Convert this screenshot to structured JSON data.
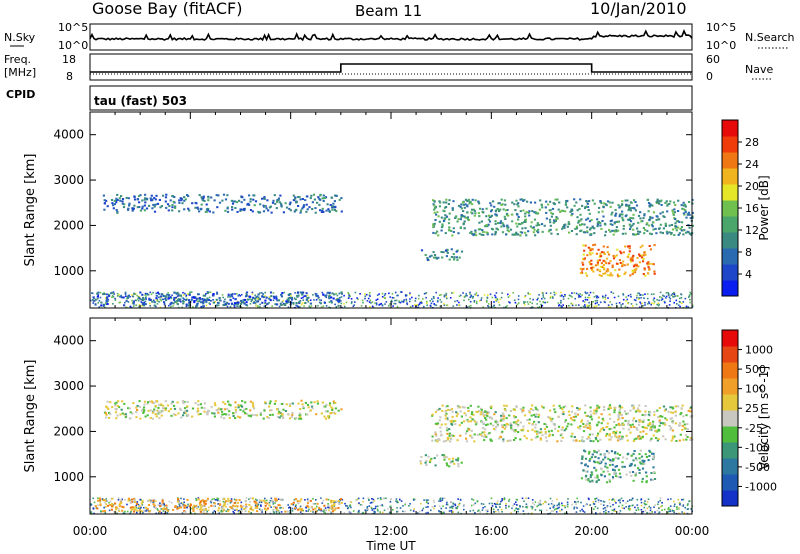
{
  "header": {
    "station": "Goose Bay (fitACF)",
    "beam": "Beam 11",
    "date": "10/Jan/2010"
  },
  "strips": {
    "nsky_label": "N.Sky",
    "nsky_ticks": [
      "10^5",
      "10^0"
    ],
    "nsearch_label": "N.Search",
    "nsearch_ticks": [
      "10^5",
      "10^0"
    ],
    "freq_label": "Freq.",
    "freq_unit": "[MHz]",
    "freq_ticks": [
      "18",
      "8"
    ],
    "nave_label": "Nave",
    "nave_ticks": [
      "60",
      "0"
    ],
    "cpid_label": "CPID",
    "cpid_value": "tau (fast) 503"
  },
  "chart_data": [
    {
      "type": "heatmap",
      "name": "power-panel",
      "ylabel": "Slant Range [km]",
      "xlabel": "Time UT",
      "x_range": [
        "00:00",
        "24:00"
      ],
      "y_range": [
        180,
        4500
      ],
      "y_ticks": [
        1000,
        2000,
        3000,
        4000
      ],
      "colorbar": {
        "label": "Power [dB]",
        "ticks": [
          "4",
          "8",
          "12",
          "16",
          "20",
          "24",
          "28"
        ],
        "colors": [
          "#0a1ef0",
          "#1e46c8",
          "#2a6ab0",
          "#3a8a82",
          "#4aa66a",
          "#70c050",
          "#e6e628",
          "#f0b41e",
          "#f07814",
          "#f03c0a",
          "#e60a0a"
        ]
      },
      "regions": [
        {
          "t0": 0.5,
          "t1": 10.0,
          "r0": 2300,
          "r1": 2700,
          "level": 0.25
        },
        {
          "t0": 13.6,
          "t1": 24.0,
          "r0": 1800,
          "r1": 2600,
          "level": 0.35
        },
        {
          "t0": 13.1,
          "t1": 14.8,
          "r0": 1250,
          "r1": 1500,
          "level": 0.3
        },
        {
          "t0": 19.5,
          "t1": 22.5,
          "r0": 900,
          "r1": 1600,
          "level": 0.75
        },
        {
          "t0": 0.0,
          "t1": 10.0,
          "r0": 250,
          "r1": 550,
          "level": 0.2
        }
      ]
    },
    {
      "type": "heatmap",
      "name": "velocity-panel",
      "ylabel": "Slant Range [km]",
      "xlabel": "Time UT",
      "x_range": [
        "00:00",
        "24:00"
      ],
      "y_range": [
        180,
        4500
      ],
      "y_ticks": [
        1000,
        2000,
        3000,
        4000
      ],
      "colorbar": {
        "label": "Velocity [m s^-1]",
        "ticks": [
          "1000",
          "500",
          "100",
          "25",
          "-25",
          "-100",
          "-500",
          "-1000"
        ],
        "colors": [
          "#1432c8",
          "#1e5ab4",
          "#2d78a0",
          "#3c9678",
          "#50be3c",
          "#c8c8c0",
          "#e6c83c",
          "#f0a028",
          "#f07814",
          "#e64614",
          "#e60a0a"
        ]
      },
      "regions": [
        {
          "t0": 0.5,
          "t1": 10.0,
          "r0": 2300,
          "r1": 2700,
          "level": 0.5
        },
        {
          "t0": 13.6,
          "t1": 24.0,
          "r0": 1800,
          "r1": 2600,
          "level": 0.5
        },
        {
          "t0": 13.1,
          "t1": 14.8,
          "r0": 1250,
          "r1": 1500,
          "level": 0.45
        },
        {
          "t0": 19.5,
          "t1": 22.5,
          "r0": 900,
          "r1": 1600,
          "level": 0.35
        },
        {
          "t0": 0.0,
          "t1": 10.0,
          "r0": 250,
          "r1": 550,
          "level": 0.65
        }
      ]
    }
  ],
  "time_axis": {
    "ticks": [
      "00:00",
      "04:00",
      "08:00",
      "12:00",
      "16:00",
      "20:00",
      "00:00"
    ],
    "label": "Time UT"
  }
}
